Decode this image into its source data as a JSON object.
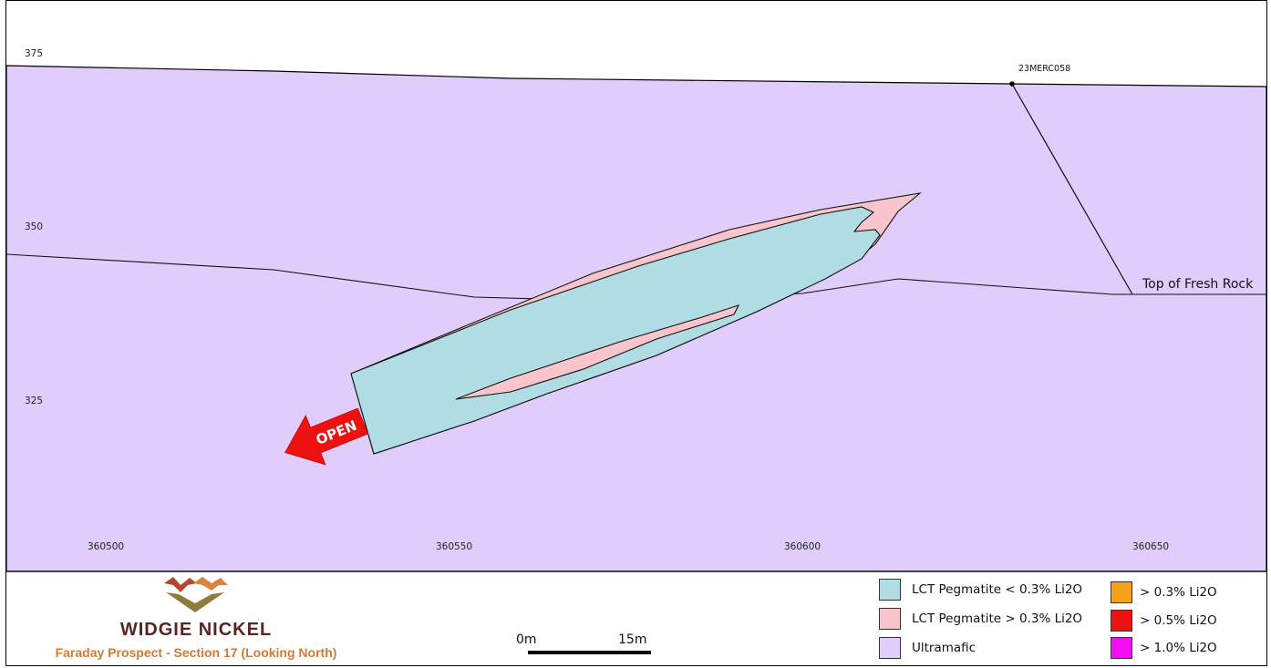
{
  "title": "Faraday Prospect - Section 17 (Looking North)",
  "brand": "WIDGIE NICKEL",
  "axes": {
    "elevation_ticks": [
      "375",
      "350",
      "325"
    ],
    "easting_ticks": [
      "360500",
      "360550",
      "360600",
      "360650"
    ]
  },
  "annotations": {
    "drillhole": "23MERC058",
    "top_of_fresh_rock": "Top of Fresh Rock",
    "open_arrow": "OPEN"
  },
  "scale_bar": {
    "start": "0m",
    "end": "15m"
  },
  "legend": {
    "units": [
      {
        "label": "LCT Pegmatite < 0.3% Li2O",
        "color": "#b0dde3"
      },
      {
        "label": "LCT Pegmatite > 0.3% Li2O",
        "color": "#f8c5cc"
      },
      {
        "label": "Ultramafic",
        "color": "#e0cdfb"
      }
    ],
    "grades": [
      {
        "label": "> 0.3% Li2O",
        "color": "#f5a21a"
      },
      {
        "label": "> 0.5% Li2O",
        "color": "#ee1111"
      },
      {
        "label": "> 1.0% Li2O",
        "color": "#f50ef5"
      }
    ]
  },
  "colors": {
    "ultramafic": "#e0cdfb",
    "pegmatite_low": "#b0dde3",
    "pegmatite_high": "#f8c5cc",
    "open_arrow": "#ee1111",
    "brand_text": "#5a2424",
    "subtitle_text": "#d17a38"
  }
}
